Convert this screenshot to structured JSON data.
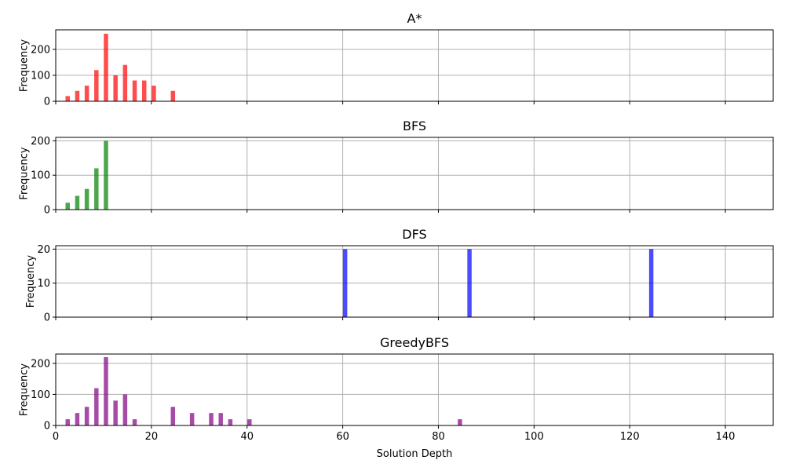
{
  "chart_data": [
    {
      "type": "bar",
      "title": "A*",
      "xlabel": "",
      "ylabel": "Frequency",
      "color": "#ff0000",
      "xlim": [
        0,
        150
      ],
      "ylim": [
        0,
        275
      ],
      "yticks": [
        0,
        100,
        200
      ],
      "grid": true,
      "bars": [
        {
          "x": 2.5,
          "y": 20
        },
        {
          "x": 4.5,
          "y": 40
        },
        {
          "x": 6.5,
          "y": 60
        },
        {
          "x": 8.5,
          "y": 120
        },
        {
          "x": 10.5,
          "y": 260
        },
        {
          "x": 12.5,
          "y": 100
        },
        {
          "x": 14.5,
          "y": 140
        },
        {
          "x": 16.5,
          "y": 80
        },
        {
          "x": 18.5,
          "y": 80
        },
        {
          "x": 20.5,
          "y": 60
        },
        {
          "x": 24.5,
          "y": 40
        }
      ]
    },
    {
      "type": "bar",
      "title": "BFS",
      "xlabel": "",
      "ylabel": "Frequency",
      "color": "#008000",
      "xlim": [
        0,
        150
      ],
      "ylim": [
        0,
        210
      ],
      "yticks": [
        0,
        100,
        200
      ],
      "grid": true,
      "bars": [
        {
          "x": 2.5,
          "y": 20
        },
        {
          "x": 4.5,
          "y": 40
        },
        {
          "x": 6.5,
          "y": 60
        },
        {
          "x": 8.5,
          "y": 120
        },
        {
          "x": 10.5,
          "y": 200
        }
      ]
    },
    {
      "type": "bar",
      "title": "DFS",
      "xlabel": "",
      "ylabel": "Frequency",
      "color": "#0000ff",
      "xlim": [
        0,
        150
      ],
      "ylim": [
        0,
        21
      ],
      "yticks": [
        0,
        10,
        20
      ],
      "grid": true,
      "bars": [
        {
          "x": 60.5,
          "y": 20
        },
        {
          "x": 86.5,
          "y": 20
        },
        {
          "x": 124.5,
          "y": 20
        }
      ]
    },
    {
      "type": "bar",
      "title": "GreedyBFS",
      "xlabel": "Solution Depth",
      "ylabel": "Frequency",
      "color": "#800080",
      "xlim": [
        0,
        150
      ],
      "ylim": [
        0,
        230
      ],
      "yticks": [
        0,
        100,
        200
      ],
      "grid": true,
      "bars": [
        {
          "x": 2.5,
          "y": 20
        },
        {
          "x": 4.5,
          "y": 40
        },
        {
          "x": 6.5,
          "y": 60
        },
        {
          "x": 8.5,
          "y": 120
        },
        {
          "x": 10.5,
          "y": 220
        },
        {
          "x": 12.5,
          "y": 80
        },
        {
          "x": 14.5,
          "y": 100
        },
        {
          "x": 16.5,
          "y": 20
        },
        {
          "x": 24.5,
          "y": 60
        },
        {
          "x": 28.5,
          "y": 40
        },
        {
          "x": 32.5,
          "y": 40
        },
        {
          "x": 34.5,
          "y": 40
        },
        {
          "x": 36.5,
          "y": 20
        },
        {
          "x": 40.5,
          "y": 20
        },
        {
          "x": 84.5,
          "y": 20
        }
      ]
    }
  ],
  "shared_xticks": [
    0,
    20,
    40,
    60,
    80,
    100,
    120,
    140
  ]
}
